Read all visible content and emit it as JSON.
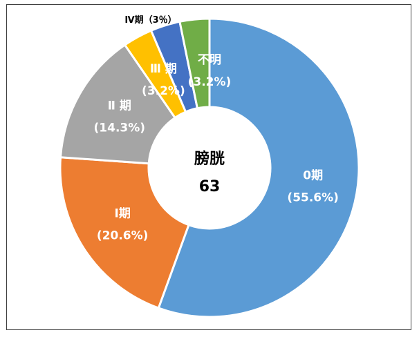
{
  "chart_data": {
    "type": "pie",
    "variant": "donut",
    "start_angle_deg": 0,
    "direction": "clockwise",
    "center_label": {
      "name": "膀胱",
      "count": "63"
    },
    "slices": [
      {
        "name": "0期",
        "value": 55.6,
        "value_label": "(55.6%)",
        "color": "#5B9BD5",
        "label_color": "#ffffff"
      },
      {
        "name": "Ⅰ期",
        "value": 20.6,
        "value_label": "(20.6%)",
        "color": "#ED7D31",
        "label_color": "#ffffff"
      },
      {
        "name": "Ⅱ 期",
        "value": 14.3,
        "value_label": "(14.3%)",
        "color": "#A5A5A5",
        "label_color": "#ffffff"
      },
      {
        "name": "Ⅲ 期",
        "value": 3.2,
        "value_label": "(3.2%)",
        "color": "#FFC000",
        "label_color": "#ffffff"
      },
      {
        "name": "Ⅳ期（3％）",
        "value": 3.2,
        "value_label": "",
        "color": "#4472C4",
        "label_color": "#000000"
      },
      {
        "name": "不明",
        "value": 3.2,
        "value_label": "(3.2%)",
        "color": "#70AD47",
        "label_color": "#ffffff"
      }
    ]
  }
}
